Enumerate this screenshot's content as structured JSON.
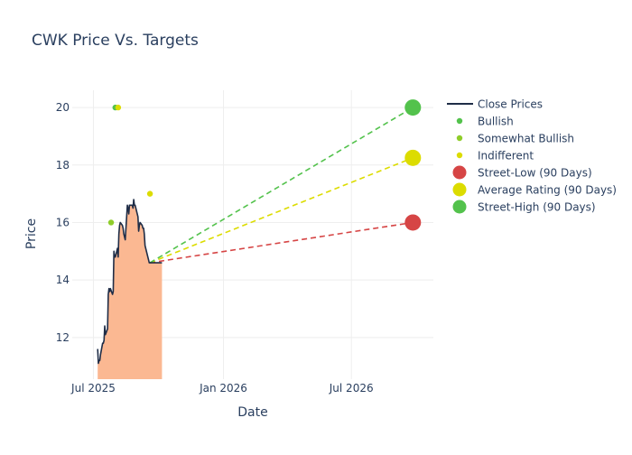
{
  "chart_data": {
    "type": "line",
    "title": "CWK Price Vs. Targets",
    "xlabel": "Date",
    "ylabel": "Price",
    "x_ticks": [
      {
        "label": "Jul 2025",
        "date": "2025-07-01"
      },
      {
        "label": "Jan 2026",
        "date": "2026-01-01"
      },
      {
        "label": "Jul 2026",
        "date": "2026-07-01"
      }
    ],
    "y_ticks": [
      12,
      14,
      16,
      18,
      20
    ],
    "xlim": [
      "2025-06-01",
      "2026-10-25"
    ],
    "ylim": [
      10.55,
      20.6
    ],
    "grid": true,
    "legend_position": "top-right",
    "colors": {
      "close": "#1f2d47",
      "fill": "#fbb892",
      "bullish": "#53c24c",
      "somewhat_bullish": "#8fcd2a",
      "indifferent": "#dcdc00",
      "street_low": "#d64545",
      "average": "#dcdc00",
      "street_high": "#53c24c",
      "grid": "#eeeeee",
      "text": "#2a3f5f"
    },
    "close_prices": {
      "name": "Close Prices",
      "x": [
        "2025-07-07",
        "2025-07-08",
        "2025-07-09",
        "2025-07-10",
        "2025-07-11",
        "2025-07-14",
        "2025-07-15",
        "2025-07-16",
        "2025-07-17",
        "2025-07-18",
        "2025-07-21",
        "2025-07-22",
        "2025-07-23",
        "2025-07-24",
        "2025-07-25",
        "2025-07-28",
        "2025-07-29",
        "2025-07-30",
        "2025-07-31",
        "2025-08-01",
        "2025-08-04",
        "2025-08-05",
        "2025-08-06",
        "2025-08-07",
        "2025-08-08",
        "2025-08-11",
        "2025-08-12",
        "2025-08-13",
        "2025-08-14",
        "2025-08-15",
        "2025-08-18",
        "2025-08-19",
        "2025-08-20",
        "2025-08-21",
        "2025-08-22",
        "2025-08-25",
        "2025-08-26",
        "2025-08-27",
        "2025-08-28",
        "2025-08-29",
        "2025-09-02",
        "2025-09-03",
        "2025-09-04",
        "2025-09-05",
        "2025-09-08",
        "2025-09-09",
        "2025-09-10",
        "2025-09-11",
        "2025-09-12",
        "2025-09-15",
        "2025-09-16",
        "2025-09-17",
        "2025-09-18",
        "2025-09-19",
        "2025-09-22",
        "2025-09-23",
        "2025-09-24",
        "2025-09-25",
        "2025-09-26",
        "2025-09-29",
        "2025-09-30",
        "2025-10-01",
        "2025-10-02",
        "2025-10-03",
        "2025-10-06"
      ],
      "values": [
        11.6,
        11.1,
        11.2,
        11.2,
        11.4,
        11.8,
        11.8,
        11.9,
        12.4,
        12.1,
        12.3,
        13.5,
        13.7,
        13.6,
        13.7,
        13.5,
        13.6,
        15.0,
        14.8,
        14.8,
        15.1,
        14.8,
        15.6,
        15.9,
        16.0,
        15.9,
        15.8,
        15.6,
        15.5,
        15.4,
        16.6,
        16.5,
        16.3,
        16.6,
        16.6,
        16.6,
        16.5,
        16.8,
        16.6,
        16.6,
        16.2,
        15.7,
        15.9,
        16.0,
        15.9,
        15.8,
        15.8,
        15.6,
        15.2,
        14.9,
        14.8,
        14.7,
        14.6,
        14.6,
        14.6,
        14.6,
        14.6,
        14.6,
        14.6,
        14.6,
        14.6,
        14.6,
        14.6,
        14.6,
        14.6
      ]
    },
    "analyst_ratings": [
      {
        "name": "Bullish",
        "points": [
          {
            "x": "2025-08-01",
            "y": 20
          }
        ]
      },
      {
        "name": "Somewhat Bullish",
        "points": [
          {
            "x": "2025-07-26",
            "y": 16
          }
        ]
      },
      {
        "name": "Indifferent",
        "points": [
          {
            "x": "2025-08-05",
            "y": 20
          },
          {
            "x": "2025-09-19",
            "y": 17
          }
        ]
      }
    ],
    "targets": {
      "start": {
        "x": "2025-09-19",
        "y": 14.6
      },
      "end_date": "2026-09-26",
      "street_low": {
        "name": "Street-Low (90 Days)",
        "value": 16
      },
      "average": {
        "name": "Average Rating (90 Days)",
        "value": 18.25
      },
      "street_high": {
        "name": "Street-High (90 Days)",
        "value": 20
      }
    },
    "legend": [
      "Close Prices",
      "Bullish",
      "Somewhat Bullish",
      "Indifferent",
      "Street-Low (90 Days)",
      "Average Rating (90 Days)",
      "Street-High (90 Days)"
    ]
  }
}
